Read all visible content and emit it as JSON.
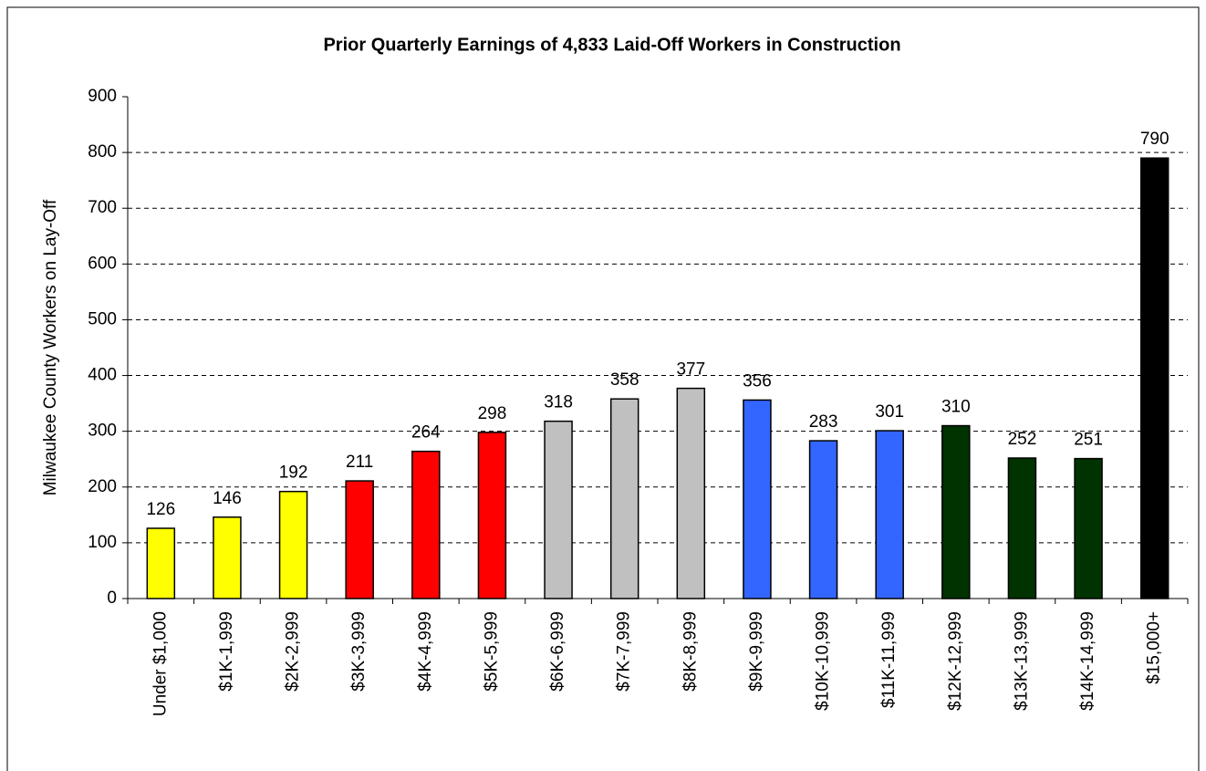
{
  "chart_data": {
    "type": "bar",
    "title": "Prior Quarterly Earnings of 4,833 Laid-Off Workers in Construction",
    "y_label": "Milwaukee County Workers on Lay-Off",
    "categories": [
      "Under $1,000",
      "$1K-1,999",
      "$2K-2,999",
      "$3K-3,999",
      "$4K-4,999",
      "$5K-5,999",
      "$6K-6,999",
      "$7K-7,999",
      "$8K-8,999",
      "$9K-9,999",
      "$10K-10,999",
      "$11K-11,999",
      "$12K-12,999",
      "$13K-13,999",
      "$14K-14,999",
      "$15,000+"
    ],
    "values": [
      126,
      146,
      192,
      211,
      264,
      298,
      318,
      358,
      377,
      356,
      283,
      301,
      310,
      252,
      251,
      790
    ],
    "colors": [
      "#ffff00",
      "#ffff00",
      "#ffff00",
      "#ff0000",
      "#ff0000",
      "#ff0000",
      "#c0c0c0",
      "#c0c0c0",
      "#c0c0c0",
      "#3366ff",
      "#3366ff",
      "#3366ff",
      "#003300",
      "#003300",
      "#003300",
      "#000000"
    ],
    "ylim": [
      0,
      900
    ],
    "yticks": [
      0,
      100,
      200,
      300,
      400,
      500,
      600,
      700,
      800,
      900
    ],
    "grid": true
  }
}
